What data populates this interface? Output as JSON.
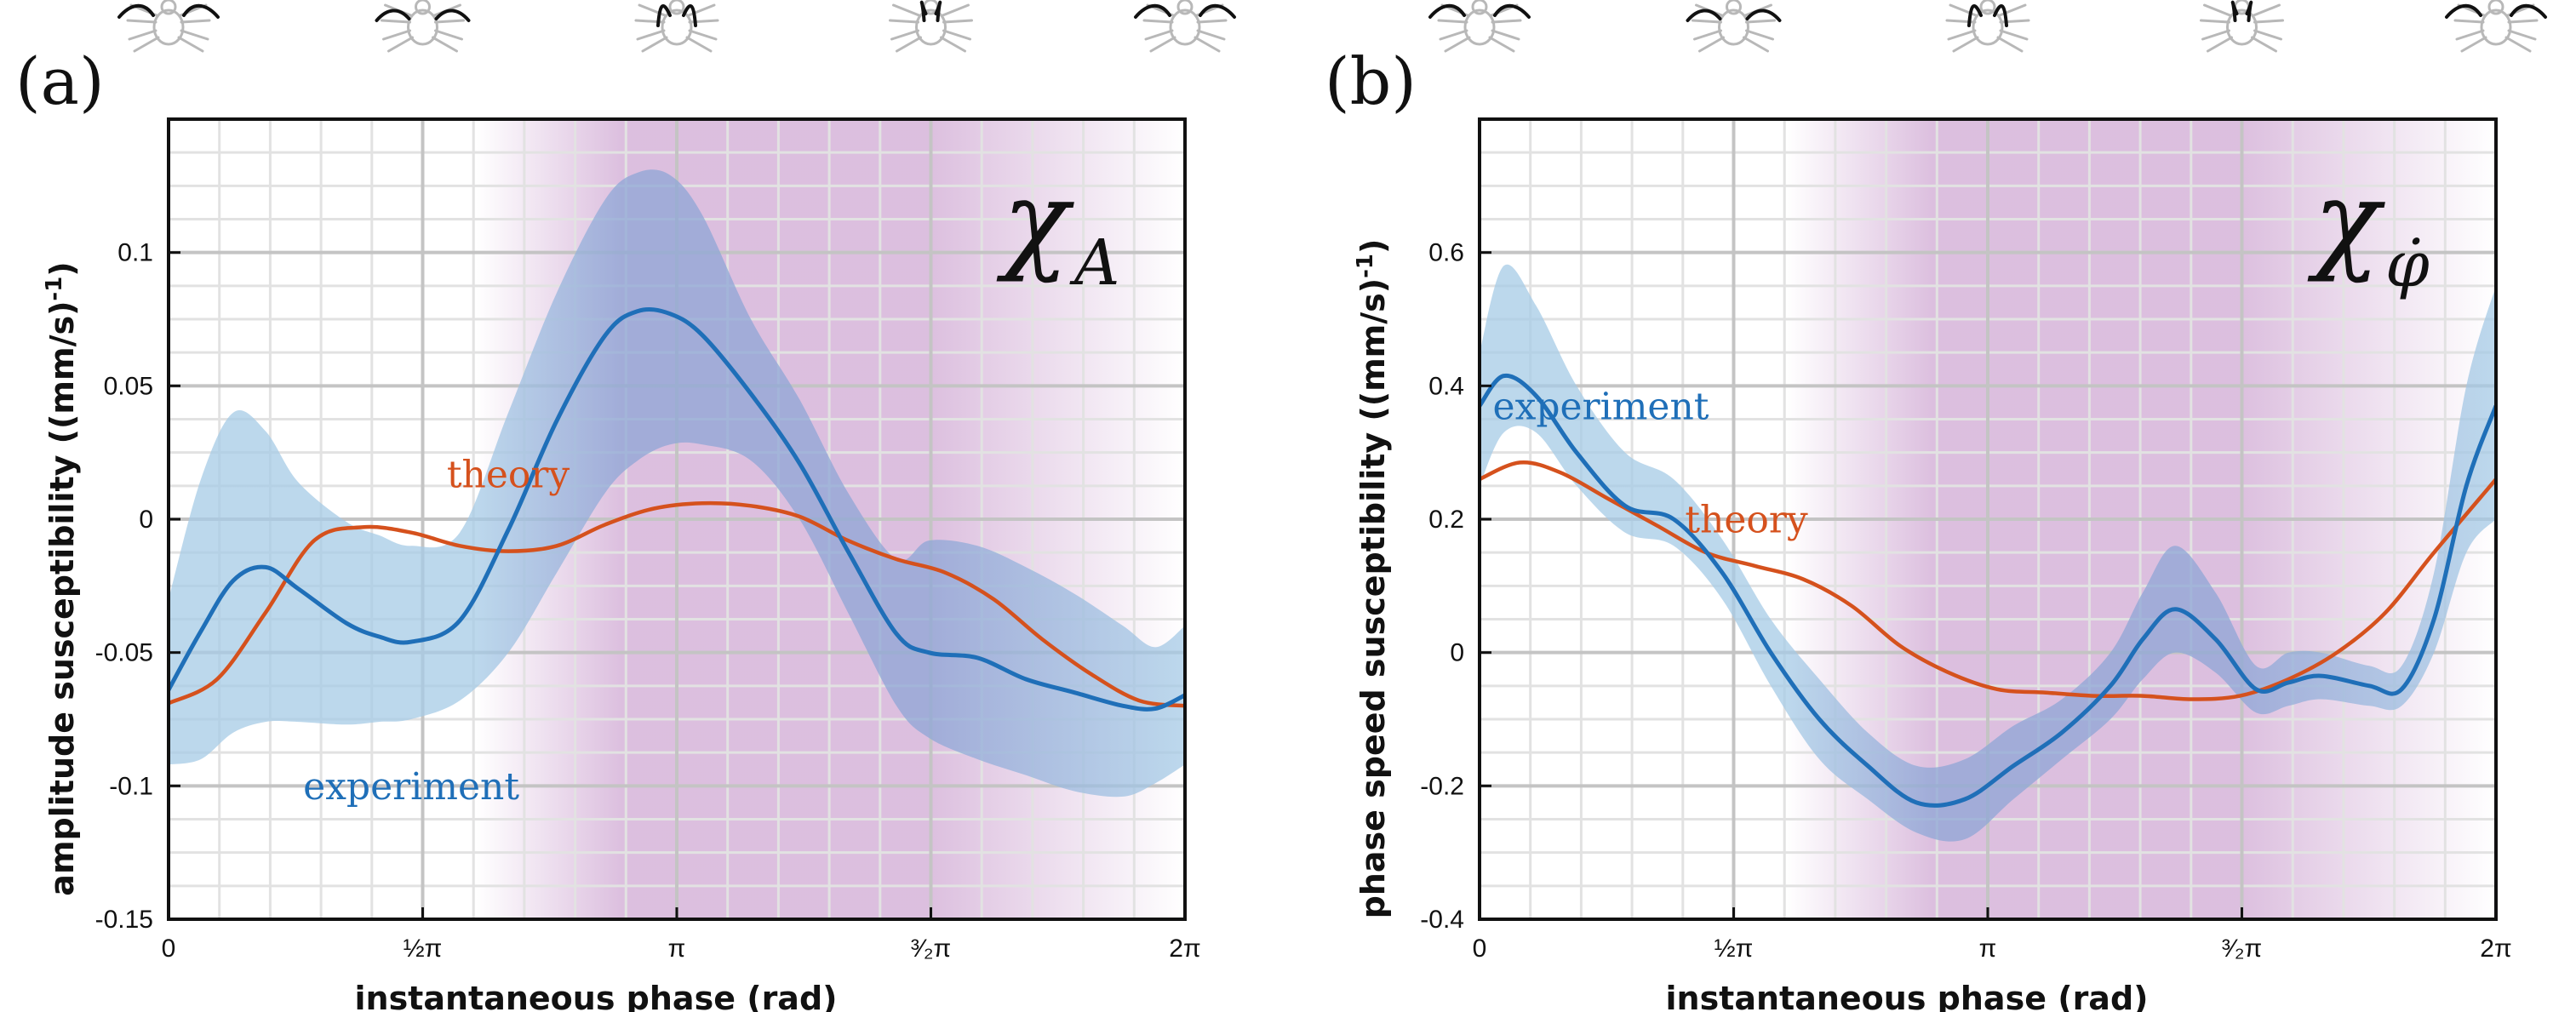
{
  "colors": {
    "experiment": "#1f6fb8",
    "theory": "#d5511d",
    "band_light": "#a6cbe6",
    "band_dark": "#8ea6d6",
    "shade": "#d6b4d9",
    "minor_grid": "#e2e2e2",
    "major_grid": "#c4c4c4"
  },
  "chart_data": [
    {
      "type": "line",
      "panel": "(a)",
      "symbol": "χ",
      "symbol_sub": "A",
      "xlabel": "instantaneous phase (rad)",
      "ylabel": "amplitude susceptibility ((mm/s)",
      "ylabel_exp": "-1",
      "ylabel_close": ")",
      "xlim": [
        0,
        6.2832
      ],
      "ylim": [
        -0.15,
        0.15
      ],
      "xticks": [
        0,
        1.5708,
        3.1416,
        4.7124,
        6.2832
      ],
      "xticklabels": [
        "0",
        "½π",
        "π",
        "³⁄₂π",
        "2π"
      ],
      "yticks": [
        -0.15,
        -0.1,
        -0.05,
        0,
        0.05,
        0.1
      ],
      "yticklabels": [
        "-0.15",
        "-0.1",
        "-0.05",
        "0",
        "0.05",
        "0.1"
      ],
      "grid": true,
      "shaded_region": {
        "fade_in": [
          1.9,
          2.8
        ],
        "full": [
          2.8,
          4.7
        ],
        "fade_out": [
          4.7,
          6.2832
        ]
      },
      "series": [
        {
          "name": "experiment",
          "x": [
            0,
            0.2,
            0.4,
            0.6,
            0.8,
            1.1,
            1.3,
            1.5,
            1.8,
            2.1,
            2.4,
            2.7,
            2.9,
            3.1,
            3.3,
            3.6,
            3.9,
            4.2,
            4.5,
            4.7,
            5.0,
            5.3,
            5.6,
            5.9,
            6.1,
            6.2832
          ],
          "y": [
            -0.064,
            -0.042,
            -0.023,
            -0.018,
            -0.026,
            -0.039,
            -0.044,
            -0.046,
            -0.038,
            -0.004,
            0.037,
            0.069,
            0.078,
            0.077,
            0.069,
            0.047,
            0.021,
            -0.012,
            -0.043,
            -0.05,
            -0.052,
            -0.06,
            -0.065,
            -0.07,
            -0.071,
            -0.066
          ],
          "lower": [
            -0.092,
            -0.09,
            -0.08,
            -0.076,
            -0.076,
            -0.077,
            -0.076,
            -0.075,
            -0.068,
            -0.05,
            -0.02,
            0.01,
            0.022,
            0.028,
            0.028,
            0.022,
            0.0,
            -0.035,
            -0.07,
            -0.082,
            -0.09,
            -0.096,
            -0.102,
            -0.104,
            -0.099,
            -0.092
          ],
          "upper": [
            -0.03,
            0.015,
            0.04,
            0.033,
            0.014,
            -0.001,
            -0.006,
            -0.01,
            -0.005,
            0.04,
            0.085,
            0.12,
            0.13,
            0.129,
            0.114,
            0.075,
            0.045,
            0.01,
            -0.015,
            -0.008,
            -0.01,
            -0.018,
            -0.028,
            -0.04,
            -0.048,
            -0.04
          ]
        },
        {
          "name": "theory",
          "x": [
            0,
            0.3,
            0.6,
            0.9,
            1.2,
            1.5,
            1.8,
            2.1,
            2.4,
            2.7,
            3.0,
            3.3,
            3.6,
            3.9,
            4.2,
            4.5,
            4.8,
            5.1,
            5.4,
            5.7,
            6.0,
            6.2832
          ],
          "y": [
            -0.069,
            -0.06,
            -0.035,
            -0.008,
            -0.003,
            -0.005,
            -0.01,
            -0.012,
            -0.01,
            -0.002,
            0.004,
            0.006,
            0.005,
            0.001,
            -0.008,
            -0.015,
            -0.02,
            -0.03,
            -0.045,
            -0.058,
            -0.068,
            -0.07
          ]
        }
      ],
      "annotations": [
        {
          "text": "theory",
          "x": 2.1,
          "y": 0.012,
          "color": "theory"
        },
        {
          "text": "experiment",
          "x": 1.5,
          "y": -0.105,
          "color": "experiment"
        }
      ]
    },
    {
      "type": "line",
      "panel": "(b)",
      "symbol": "χ",
      "symbol_sub": "φ̇",
      "xlabel": "instantaneous phase (rad)",
      "ylabel": "phase speed susceptibility ((mm/s)",
      "ylabel_exp": "-1",
      "ylabel_close": ")",
      "xlim": [
        0,
        6.2832
      ],
      "ylim": [
        -0.4,
        0.8
      ],
      "xticks": [
        0,
        1.5708,
        3.1416,
        4.7124,
        6.2832
      ],
      "xticklabels": [
        "0",
        "½π",
        "π",
        "³⁄₂π",
        "2π"
      ],
      "yticks": [
        -0.4,
        -0.2,
        0,
        0.2,
        0.4,
        0.6
      ],
      "yticklabels": [
        "-0.4",
        "-0.2",
        "0",
        "0.2",
        "0.4",
        "0.6"
      ],
      "grid": true,
      "shaded_region": {
        "fade_in": [
          1.9,
          2.8
        ],
        "full": [
          2.8,
          4.7
        ],
        "fade_out": [
          4.7,
          6.2832
        ]
      },
      "series": [
        {
          "name": "experiment",
          "x": [
            0,
            0.15,
            0.35,
            0.6,
            0.9,
            1.2,
            1.5,
            1.8,
            2.1,
            2.4,
            2.7,
            3.0,
            3.3,
            3.6,
            3.9,
            4.1,
            4.3,
            4.55,
            4.8,
            5.0,
            5.2,
            5.5,
            5.7,
            5.9,
            6.1,
            6.2832
          ],
          "y": [
            0.37,
            0.415,
            0.385,
            0.3,
            0.22,
            0.2,
            0.12,
            0.0,
            -0.1,
            -0.17,
            -0.225,
            -0.22,
            -0.17,
            -0.12,
            -0.05,
            0.02,
            0.065,
            0.02,
            -0.055,
            -0.045,
            -0.035,
            -0.05,
            -0.055,
            0.05,
            0.25,
            0.37
          ],
          "lower": [
            0.25,
            0.33,
            0.33,
            0.25,
            0.18,
            0.16,
            0.08,
            -0.05,
            -0.16,
            -0.22,
            -0.27,
            -0.28,
            -0.22,
            -0.16,
            -0.1,
            -0.04,
            0.0,
            -0.03,
            -0.09,
            -0.08,
            -0.07,
            -0.08,
            -0.08,
            0.0,
            0.15,
            0.2
          ],
          "upper": [
            0.45,
            0.58,
            0.52,
            0.4,
            0.3,
            0.26,
            0.17,
            0.05,
            -0.04,
            -0.12,
            -0.17,
            -0.16,
            -0.11,
            -0.07,
            0.0,
            0.09,
            0.16,
            0.09,
            -0.02,
            0.0,
            0.0,
            -0.02,
            -0.02,
            0.12,
            0.4,
            0.55
          ]
        },
        {
          "name": "theory",
          "x": [
            0,
            0.25,
            0.5,
            0.8,
            1.1,
            1.4,
            1.7,
            2.0,
            2.3,
            2.6,
            2.9,
            3.2,
            3.5,
            3.8,
            4.1,
            4.4,
            4.7,
            5.0,
            5.3,
            5.6,
            5.9,
            6.2832
          ],
          "y": [
            0.26,
            0.285,
            0.27,
            0.23,
            0.19,
            0.15,
            0.13,
            0.11,
            0.07,
            0.01,
            -0.03,
            -0.055,
            -0.06,
            -0.065,
            -0.065,
            -0.07,
            -0.065,
            -0.04,
            0.0,
            0.06,
            0.15,
            0.26
          ]
        }
      ],
      "annotations": [
        {
          "text": "experiment",
          "x": 0.75,
          "y": 0.35,
          "color": "experiment"
        },
        {
          "text": "theory",
          "x": 1.65,
          "y": 0.18,
          "color": "theory"
        }
      ]
    }
  ]
}
